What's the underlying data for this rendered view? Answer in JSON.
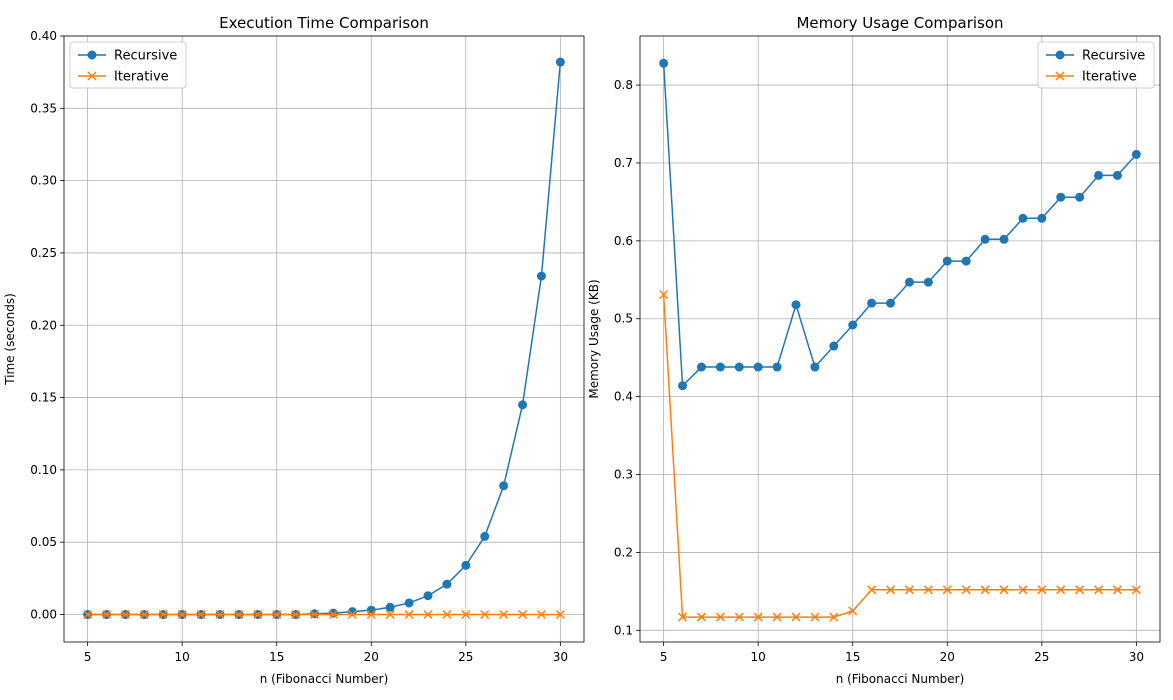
{
  "chart_data": [
    {
      "type": "line",
      "title": "Execution Time Comparison",
      "xlabel": "n (Fibonacci Number)",
      "ylabel": "Time (seconds)",
      "xlim": [
        3.75,
        31.25
      ],
      "ylim": [
        -0.019,
        0.4
      ],
      "xticks": [
        5,
        10,
        15,
        20,
        25,
        30
      ],
      "xtick_labels": [
        "5",
        "10",
        "15",
        "20",
        "25",
        "30"
      ],
      "yticks": [
        0.0,
        0.05,
        0.1,
        0.15,
        0.2,
        0.25,
        0.3,
        0.35,
        0.4
      ],
      "ytick_labels": [
        "0.00",
        "0.05",
        "0.10",
        "0.15",
        "0.20",
        "0.25",
        "0.30",
        "0.35",
        "0.40"
      ],
      "grid": true,
      "legend": "upper left",
      "x": [
        5,
        6,
        7,
        8,
        9,
        10,
        11,
        12,
        13,
        14,
        15,
        16,
        17,
        18,
        19,
        20,
        21,
        22,
        23,
        24,
        25,
        26,
        27,
        28,
        29,
        30
      ],
      "series": [
        {
          "name": "Recursive",
          "color": "#1f77b4",
          "marker": "circle",
          "values": [
            0.0,
            0.0,
            0.0,
            0.0,
            0.0,
            0.0,
            0.0,
            0.0,
            0.0,
            0.0,
            0.0,
            0.0,
            0.0005,
            0.001,
            0.002,
            0.003,
            0.005,
            0.008,
            0.013,
            0.021,
            0.034,
            0.054,
            0.089,
            0.145,
            0.234,
            0.382
          ]
        },
        {
          "name": "Iterative",
          "color": "#ff7f0e",
          "marker": "x",
          "values": [
            0.0,
            0.0,
            0.0,
            0.0,
            0.0,
            0.0,
            0.0,
            0.0,
            0.0,
            0.0,
            0.0,
            0.0,
            0.0,
            0.0,
            0.0,
            0.0,
            0.0,
            0.0,
            0.0,
            0.0,
            0.0,
            0.0,
            0.0,
            0.0,
            0.0,
            0.0
          ]
        }
      ]
    },
    {
      "type": "line",
      "title": "Memory Usage Comparison",
      "xlabel": "n (Fibonacci Number)",
      "ylabel": "Memory Usage (KB)",
      "xlim": [
        3.75,
        31.25
      ],
      "ylim": [
        0.085,
        0.863
      ],
      "xticks": [
        5,
        10,
        15,
        20,
        25,
        30
      ],
      "xtick_labels": [
        "5",
        "10",
        "15",
        "20",
        "25",
        "30"
      ],
      "yticks": [
        0.1,
        0.2,
        0.3,
        0.4,
        0.5,
        0.6,
        0.7,
        0.8
      ],
      "ytick_labels": [
        "0.1",
        "0.2",
        "0.3",
        "0.4",
        "0.5",
        "0.6",
        "0.7",
        "0.8"
      ],
      "grid": true,
      "legend": "upper right",
      "x": [
        5,
        6,
        7,
        8,
        9,
        10,
        11,
        12,
        13,
        14,
        15,
        16,
        17,
        18,
        19,
        20,
        21,
        22,
        23,
        24,
        25,
        26,
        27,
        28,
        29,
        30
      ],
      "series": [
        {
          "name": "Recursive",
          "color": "#1f77b4",
          "marker": "circle",
          "values": [
            0.828,
            0.414,
            0.438,
            0.438,
            0.438,
            0.438,
            0.438,
            0.518,
            0.438,
            0.465,
            0.492,
            0.52,
            0.52,
            0.547,
            0.547,
            0.574,
            0.574,
            0.602,
            0.602,
            0.629,
            0.629,
            0.656,
            0.656,
            0.684,
            0.684,
            0.711
          ]
        },
        {
          "name": "Iterative",
          "color": "#ff7f0e",
          "marker": "x",
          "values": [
            0.531,
            0.117,
            0.117,
            0.117,
            0.117,
            0.117,
            0.117,
            0.117,
            0.117,
            0.117,
            0.125,
            0.152,
            0.152,
            0.152,
            0.152,
            0.152,
            0.152,
            0.152,
            0.152,
            0.152,
            0.152,
            0.152,
            0.152,
            0.152,
            0.152,
            0.152
          ]
        }
      ]
    }
  ]
}
